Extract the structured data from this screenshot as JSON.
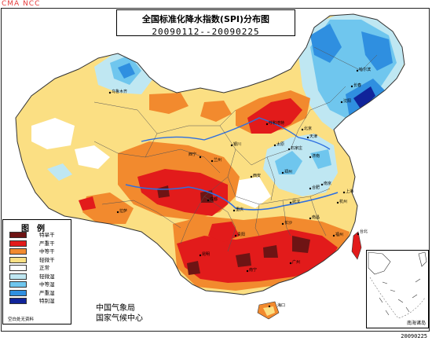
{
  "watermark": "CMA NCC",
  "title": "全国标准化降水指数(SPI)分布图",
  "date_range": "20090112--20090225",
  "legend": {
    "title": "图例",
    "items": [
      {
        "label": "特旱干",
        "color": "#6e1414"
      },
      {
        "label": "严重干",
        "color": "#e21b1b"
      },
      {
        "label": "中等干",
        "color": "#f28a2e"
      },
      {
        "label": "轻微干",
        "color": "#fbdf83"
      },
      {
        "label": "正常",
        "color": "#ffffff"
      },
      {
        "label": "轻微湿",
        "color": "#bfe7f2"
      },
      {
        "label": "中等湿",
        "color": "#6fc6ee"
      },
      {
        "label": "严重湿",
        "color": "#2f8fe0"
      },
      {
        "label": "特别湿",
        "color": "#10249a"
      }
    ],
    "note": "空白处无资料"
  },
  "agency": {
    "line1": "中国气象局",
    "line2": "国家气候中心"
  },
  "inset_label": "南海诸岛",
  "date_stamp": "20090225",
  "cities": [
    {
      "name": "乌鲁木齐"
    },
    {
      "name": "哈尔滨"
    },
    {
      "name": "长春"
    },
    {
      "name": "沈阳"
    },
    {
      "name": "呼和浩特"
    },
    {
      "name": "北京"
    },
    {
      "name": "天津"
    },
    {
      "name": "太原"
    },
    {
      "name": "石家庄"
    },
    {
      "name": "济南"
    },
    {
      "name": "银川"
    },
    {
      "name": "兰州"
    },
    {
      "name": "西宁"
    },
    {
      "name": "西安"
    },
    {
      "name": "郑州"
    },
    {
      "name": "合肥"
    },
    {
      "name": "南京"
    },
    {
      "name": "上海"
    },
    {
      "name": "武汉"
    },
    {
      "name": "成都"
    },
    {
      "name": "重庆"
    },
    {
      "name": "拉萨"
    },
    {
      "name": "长沙"
    },
    {
      "name": "南昌"
    },
    {
      "name": "杭州"
    },
    {
      "name": "福州"
    },
    {
      "name": "贵阳"
    },
    {
      "name": "昆明"
    },
    {
      "name": "南宁"
    },
    {
      "name": "广州"
    },
    {
      "name": "台北"
    },
    {
      "name": "海口"
    }
  ]
}
